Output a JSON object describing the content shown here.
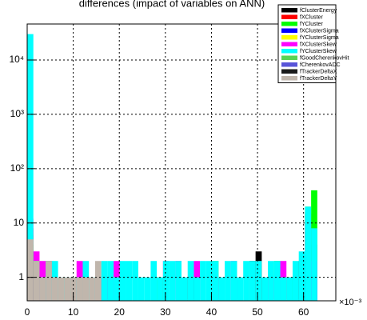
{
  "chart_data": {
    "type": "histogram",
    "title": "differences (impact of variables on ANN)",
    "xlabel": "×10⁻³",
    "bins": [
      0,
      1.34,
      2.68,
      4.02,
      5.36,
      6.7,
      8.04,
      9.38,
      10.72,
      12.06,
      13.4,
      14.74,
      16.08,
      17.42,
      18.76,
      20.1,
      21.44,
      22.78,
      24.12,
      25.46,
      26.8,
      28.14,
      29.48,
      30.82,
      32.16,
      33.5,
      34.84,
      36.18,
      37.52,
      38.86,
      40.2,
      41.54,
      42.88,
      44.22,
      45.56,
      46.9,
      48.24,
      49.58,
      50.92,
      52.26,
      53.6,
      54.94,
      56.28,
      57.62,
      58.96,
      60.3,
      61.64,
      62.98,
      64.32,
      65.66,
      67
    ],
    "xlim": [
      0,
      67
    ],
    "xticks": [
      0,
      10,
      20,
      30,
      40,
      50,
      60
    ],
    "ylim": [
      0.37,
      46000
    ],
    "yticks": [
      1,
      10,
      {
        "value": 100,
        "label": "10²"
      },
      {
        "value": 1000,
        "label": "10³"
      },
      {
        "value": 10000,
        "label": "10⁴"
      }
    ],
    "log_y": true,
    "grid": true,
    "legend": "top-right",
    "series": [
      {
        "name": "fClusterEnergy",
        "color": "#000000",
        "values": [
          3,
          1,
          0,
          0,
          0,
          0,
          0,
          0,
          0,
          0,
          0,
          0,
          1,
          0,
          0,
          0,
          0,
          0,
          0,
          0,
          0,
          0,
          0,
          0,
          0,
          0,
          1,
          0,
          0,
          0,
          0,
          0,
          0,
          0,
          0,
          0,
          2,
          3,
          0,
          0,
          0,
          0,
          0,
          0,
          2,
          15,
          4,
          0,
          0,
          0
        ]
      },
      {
        "name": "fXCluster",
        "color": "#ff0000",
        "values": [
          8,
          2,
          1,
          2,
          0,
          0,
          0,
          0,
          0,
          0,
          0,
          0,
          0,
          0,
          0,
          0,
          0,
          0,
          0,
          0,
          0,
          0,
          0,
          0,
          0,
          0,
          0,
          0,
          0,
          0,
          0,
          0,
          0,
          0,
          0,
          0,
          0,
          2,
          0,
          0,
          0,
          0,
          0,
          0,
          0,
          3,
          2,
          0,
          0,
          0
        ]
      },
      {
        "name": "fYCluster",
        "color": "#00ff00",
        "values": [
          6,
          2,
          1,
          1,
          1,
          0,
          0,
          0,
          0,
          0,
          0,
          0,
          0,
          0,
          0,
          0,
          0,
          0,
          0,
          0,
          0,
          1,
          0,
          0,
          0,
          0,
          0,
          0,
          0,
          0,
          2,
          0,
          0,
          0,
          0,
          0,
          0,
          0,
          0,
          0,
          2,
          0,
          1,
          0,
          0,
          20,
          40,
          0,
          0,
          0
        ]
      },
      {
        "name": "fXClusterSigma",
        "color": "#0000ff",
        "values": [
          4,
          1,
          0,
          0,
          0,
          0,
          0,
          0,
          0,
          0,
          0,
          0,
          0,
          0,
          0,
          0,
          0,
          0,
          0,
          0,
          0,
          0,
          0,
          0,
          0,
          0,
          0,
          0,
          0,
          0,
          0,
          0,
          0,
          0,
          0,
          0,
          0,
          0,
          0,
          0,
          0,
          0,
          0,
          0,
          0,
          2,
          1,
          0,
          0,
          0
        ]
      },
      {
        "name": "fYClusterSigma",
        "color": "#ffff00",
        "values": [
          5,
          1,
          1,
          0,
          0,
          0,
          0,
          0,
          0,
          0,
          0,
          0,
          0,
          0,
          0,
          0,
          0,
          0,
          0,
          0,
          0,
          0,
          0,
          0,
          0,
          0,
          0,
          0,
          0,
          0,
          0,
          0,
          0,
          0,
          0,
          0,
          0,
          0,
          0,
          0,
          0,
          0,
          0,
          0,
          0,
          0,
          0,
          0,
          0,
          0
        ]
      },
      {
        "name": "fXClusterSkew",
        "color": "#ff00ff",
        "values": [
          12,
          3,
          2,
          1,
          1,
          0,
          0,
          0,
          2,
          0,
          0,
          0,
          1,
          0,
          2,
          0,
          0,
          0,
          0,
          0,
          0,
          0,
          2,
          0,
          2,
          0,
          0,
          2,
          0,
          0,
          1,
          0,
          0,
          2,
          0,
          0,
          0,
          0,
          0,
          1,
          0,
          2,
          0,
          0,
          0,
          10,
          2,
          0,
          0,
          0
        ]
      },
      {
        "name": "fYClusterSkew",
        "color": "#00ffff",
        "values": [
          30000,
          2,
          1,
          2,
          2,
          1,
          1,
          1,
          1,
          2,
          1,
          1,
          2,
          2,
          1,
          2,
          2,
          2,
          1,
          1,
          2,
          1,
          2,
          2,
          2,
          1,
          2,
          1,
          2,
          2,
          2,
          1,
          2,
          2,
          1,
          2,
          2,
          2,
          1,
          2,
          2,
          1,
          1,
          2,
          3,
          20,
          8,
          0,
          0,
          0
        ]
      },
      {
        "name": "fGoodCherenkovHit",
        "color": "#59d454",
        "values": [
          4,
          2,
          0,
          0,
          0,
          0,
          0,
          0,
          0,
          0,
          0,
          0,
          0,
          0,
          0,
          0,
          0,
          0,
          0,
          0,
          0,
          0,
          0,
          0,
          0,
          0,
          0,
          0,
          0,
          0,
          0,
          0,
          0,
          0,
          0,
          0,
          0,
          0,
          0,
          0,
          0,
          0,
          0,
          0,
          0,
          0,
          0,
          0,
          0,
          0
        ]
      },
      {
        "name": "fCherenkovADC",
        "color": "#5954d8",
        "values": [
          3,
          1,
          0,
          0,
          0,
          0,
          0,
          0,
          0,
          0,
          0,
          0,
          0,
          0,
          0,
          0,
          0,
          0,
          0,
          0,
          0,
          0,
          0,
          0,
          0,
          0,
          0,
          0,
          0,
          0,
          0,
          0,
          0,
          0,
          0,
          0,
          0,
          0,
          0,
          0,
          0,
          0,
          0,
          0,
          0,
          0,
          0,
          0,
          0,
          0
        ]
      },
      {
        "name": "fTrackerDeltaX",
        "color": "#1a1a1a",
        "values": [
          2,
          0,
          0,
          0,
          0,
          0,
          0,
          0,
          0,
          0,
          0,
          0,
          0,
          0,
          0,
          0,
          0,
          0,
          0,
          0,
          0,
          0,
          0,
          0,
          0,
          0,
          0,
          0,
          0,
          0,
          0,
          0,
          0,
          0,
          0,
          0,
          0,
          0,
          0,
          0,
          0,
          0,
          0,
          0,
          0,
          0,
          0,
          0,
          0,
          0
        ]
      },
      {
        "name": "fTrackerDeltaY",
        "color": "#c0b6ac",
        "values": [
          5,
          2,
          1,
          2,
          1,
          1,
          1,
          1,
          1,
          1,
          1,
          2,
          0,
          0,
          0,
          0,
          0,
          0,
          0,
          0,
          0,
          0,
          0,
          0,
          0,
          0,
          0,
          0,
          0,
          0,
          0,
          0,
          0,
          0,
          0,
          0,
          0,
          0,
          0,
          0,
          0,
          0,
          0,
          0,
          0,
          0,
          0,
          0,
          0,
          0
        ]
      }
    ]
  }
}
